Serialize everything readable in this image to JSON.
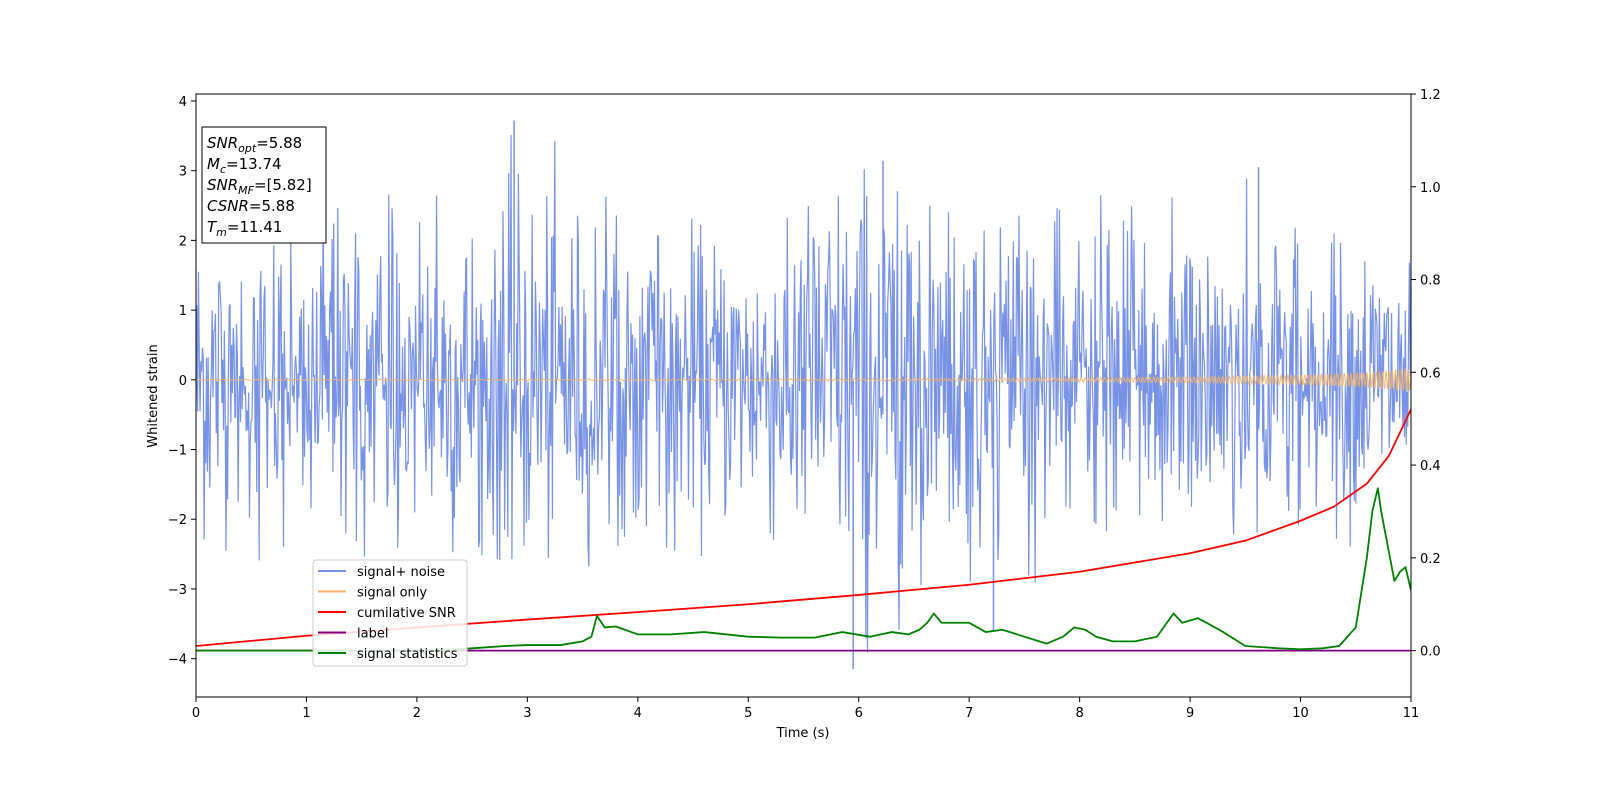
{
  "chart_data": {
    "type": "line",
    "title": "",
    "xlabel": "Time (s)",
    "ylabel": "Whitened strain",
    "xlim": [
      0,
      11
    ],
    "ylim_left": [
      -4.55,
      4.1
    ],
    "ylim_right": [
      -0.1,
      1.2
    ],
    "x_ticks": [
      0,
      1,
      2,
      3,
      4,
      5,
      6,
      7,
      8,
      9,
      10,
      11
    ],
    "y_ticks_left": [
      -4,
      -3,
      -2,
      -1,
      0,
      1,
      2,
      3,
      4
    ],
    "y_ticks_right": [
      "0.0",
      "0.2",
      "0.4",
      "0.6",
      "0.8",
      "1.0",
      "1.2"
    ],
    "legend_position": "lower-left",
    "grid": false,
    "annotations": [
      {
        "base": "SNR",
        "sub": "opt",
        "value": "=5.88"
      },
      {
        "base": "M",
        "sub": "c",
        "value": "=13.74"
      },
      {
        "base": "SNR",
        "sub": "MF",
        "value": "=[5.82]"
      },
      {
        "base": "CSNR",
        "sub": "",
        "value": "=5.88"
      },
      {
        "base": "T",
        "sub": "m",
        "value": "=11.41"
      }
    ],
    "series": [
      {
        "name": "signal+ noise",
        "axis": "left",
        "color": "#7893e6",
        "kind": "noise-band",
        "envelope": {
          "x": [
            0,
            1,
            2,
            3,
            4,
            5,
            6,
            7,
            8,
            9,
            10,
            11
          ],
          "upper": [
            3.1,
            2.9,
            2.9,
            3.7,
            2.6,
            2.4,
            3.1,
            2.3,
            2.6,
            2.9,
            2.9,
            1.7
          ],
          "lower": [
            -2.7,
            -2.6,
            -2.6,
            -2.6,
            -2.8,
            -2.7,
            -4.15,
            -3.6,
            -2.9,
            -2.8,
            -2.4,
            -2.7
          ]
        },
        "spikes": [
          {
            "x": 2.88,
            "y": 3.72
          },
          {
            "x": 6.22,
            "y": 3.14
          },
          {
            "x": 5.95,
            "y": -4.15
          },
          {
            "x": 7.22,
            "y": -3.6
          },
          {
            "x": 9.62,
            "y": 3.05
          }
        ]
      },
      {
        "name": "signal only",
        "axis": "left",
        "color": "#f5b266",
        "kind": "chirp",
        "amplitude": {
          "x": [
            0,
            4,
            7,
            9,
            10,
            10.6,
            11
          ],
          "y": [
            0.005,
            0.01,
            0.02,
            0.04,
            0.07,
            0.11,
            0.17
          ]
        }
      },
      {
        "name": "cumilative SNR",
        "axis": "right",
        "color": "#ff0000",
        "x": [
          0,
          1,
          2,
          3,
          4,
          5,
          6,
          7,
          8,
          9,
          9.5,
          10,
          10.3,
          10.6,
          10.8,
          11
        ],
        "y": [
          0.01,
          0.032,
          0.05,
          0.067,
          0.083,
          0.1,
          0.12,
          0.142,
          0.17,
          0.21,
          0.237,
          0.28,
          0.31,
          0.36,
          0.42,
          0.52
        ]
      },
      {
        "name": "label",
        "axis": "right",
        "color": "#800080",
        "x": [
          0,
          11
        ],
        "y": [
          0,
          0
        ]
      },
      {
        "name": "signal statistics",
        "axis": "right",
        "color": "#008000",
        "x": [
          0,
          2.2,
          2.5,
          2.8,
          3.0,
          3.3,
          3.5,
          3.58,
          3.63,
          3.7,
          3.8,
          4.0,
          4.3,
          4.6,
          5.0,
          5.3,
          5.6,
          5.85,
          6.1,
          6.3,
          6.45,
          6.55,
          6.62,
          6.68,
          6.75,
          6.85,
          7.0,
          7.15,
          7.3,
          7.5,
          7.7,
          7.85,
          7.95,
          8.05,
          8.15,
          8.3,
          8.5,
          8.7,
          8.85,
          8.93,
          9.0,
          9.07,
          9.15,
          9.3,
          9.5,
          9.8,
          10.0,
          10.2,
          10.35,
          10.5,
          10.6,
          10.65,
          10.7,
          10.73,
          10.77,
          10.85,
          10.9,
          10.95,
          11.0
        ],
        "y": [
          0,
          0,
          0.005,
          0.01,
          0.012,
          0.012,
          0.02,
          0.03,
          0.075,
          0.05,
          0.052,
          0.035,
          0.035,
          0.04,
          0.03,
          0.028,
          0.028,
          0.04,
          0.03,
          0.04,
          0.035,
          0.045,
          0.06,
          0.08,
          0.06,
          0.06,
          0.06,
          0.04,
          0.045,
          0.03,
          0.015,
          0.03,
          0.05,
          0.045,
          0.03,
          0.02,
          0.02,
          0.03,
          0.08,
          0.06,
          0.065,
          0.07,
          0.06,
          0.04,
          0.01,
          0.005,
          0.003,
          0.005,
          0.01,
          0.05,
          0.2,
          0.3,
          0.35,
          0.3,
          0.25,
          0.15,
          0.17,
          0.18,
          0.13
        ]
      }
    ]
  }
}
